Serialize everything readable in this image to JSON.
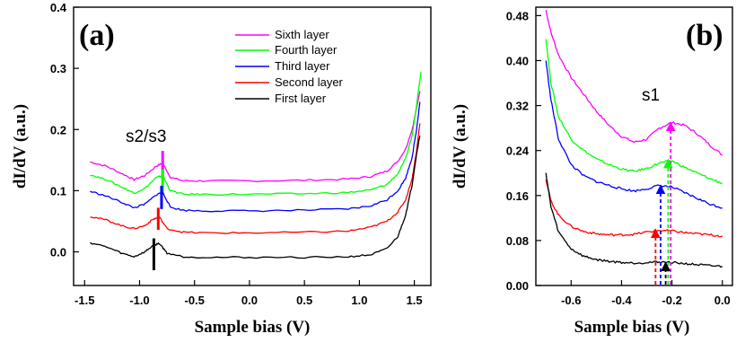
{
  "chart_data": [
    {
      "type": "line",
      "panel_label": "(a)",
      "xlabel": "Sample bias (V)",
      "ylabel": "dI/dV (a.u.)",
      "xlim": [
        -1.6,
        1.65
      ],
      "ylim": [
        -0.055,
        0.4
      ],
      "x_ticks": [
        -1.5,
        -1.0,
        -0.5,
        0.0,
        0.5,
        1.0,
        1.5
      ],
      "x_tick_labels": [
        "-1.5",
        "-1.0",
        "-0.5",
        "0.0",
        "0.5",
        "1.0",
        "1.5"
      ],
      "y_ticks": [
        0.0,
        0.1,
        0.2,
        0.3,
        0.4
      ],
      "y_tick_labels": [
        "0.0",
        "0.1",
        "0.2",
        "0.3",
        "0.4"
      ],
      "legend": [
        "Sixth layer",
        "Fourth layer",
        "Third layer",
        "Second layer",
        "First layer"
      ],
      "annotation": "s2/s3",
      "series": [
        {
          "name": "Sixth layer",
          "color": "#ff00ff",
          "x": [
            -1.45,
            -1.3,
            -1.15,
            -1.05,
            -0.95,
            -0.85,
            -0.79,
            -0.72,
            -0.6,
            -0.4,
            0.0,
            0.5,
            0.9,
            1.1,
            1.25,
            1.35,
            1.42,
            1.48,
            1.52,
            1.55
          ],
          "y": [
            0.147,
            0.14,
            0.127,
            0.118,
            0.125,
            0.14,
            0.145,
            0.122,
            0.116,
            0.116,
            0.116,
            0.117,
            0.119,
            0.123,
            0.132,
            0.148,
            0.168,
            0.2,
            0.235,
            0.263
          ]
        },
        {
          "name": "Fourth layer",
          "color": "#00ff00",
          "x": [
            -1.45,
            -1.3,
            -1.15,
            -1.05,
            -0.95,
            -0.85,
            -0.79,
            -0.72,
            -0.6,
            -0.4,
            0.0,
            0.5,
            0.9,
            1.1,
            1.25,
            1.35,
            1.42,
            1.48,
            1.52,
            1.56
          ],
          "y": [
            0.126,
            0.118,
            0.105,
            0.096,
            0.104,
            0.121,
            0.125,
            0.1,
            0.094,
            0.094,
            0.094,
            0.095,
            0.097,
            0.101,
            0.11,
            0.128,
            0.152,
            0.19,
            0.24,
            0.294
          ]
        },
        {
          "name": "Third layer",
          "color": "#0000ff",
          "x": [
            -1.45,
            -1.3,
            -1.15,
            -1.05,
            -0.95,
            -0.85,
            -0.79,
            -0.72,
            -0.6,
            -0.4,
            0.0,
            0.5,
            0.9,
            1.1,
            1.25,
            1.35,
            1.42,
            1.48,
            1.52,
            1.55
          ],
          "y": [
            0.099,
            0.091,
            0.08,
            0.072,
            0.078,
            0.093,
            0.098,
            0.073,
            0.068,
            0.067,
            0.067,
            0.068,
            0.07,
            0.075,
            0.085,
            0.1,
            0.12,
            0.155,
            0.2,
            0.245
          ]
        },
        {
          "name": "Second layer",
          "color": "#ff0000",
          "x": [
            -1.45,
            -1.3,
            -1.15,
            -1.05,
            -0.95,
            -0.88,
            -0.82,
            -0.75,
            -0.6,
            -0.4,
            0.0,
            0.5,
            0.9,
            1.1,
            1.25,
            1.35,
            1.42,
            1.48,
            1.52,
            1.55
          ],
          "y": [
            0.058,
            0.052,
            0.042,
            0.038,
            0.043,
            0.053,
            0.057,
            0.038,
            0.032,
            0.031,
            0.031,
            0.032,
            0.034,
            0.04,
            0.05,
            0.065,
            0.085,
            0.12,
            0.165,
            0.21
          ]
        },
        {
          "name": "First layer",
          "color": "#000000",
          "x": [
            -1.45,
            -1.3,
            -1.15,
            -1.05,
            -0.95,
            -0.88,
            -0.82,
            -0.75,
            -0.6,
            -0.4,
            0.0,
            0.5,
            0.9,
            1.1,
            1.25,
            1.35,
            1.42,
            1.48,
            1.52,
            1.55
          ],
          "y": [
            0.015,
            0.008,
            -0.003,
            -0.008,
            0.0,
            0.01,
            0.014,
            -0.002,
            -0.008,
            -0.009,
            -0.009,
            -0.009,
            -0.008,
            -0.005,
            0.005,
            0.025,
            0.06,
            0.11,
            0.16,
            0.19
          ]
        }
      ],
      "markers": [
        {
          "name": "Sixth layer",
          "color": "#ff00ff",
          "x": -0.79,
          "y0": 0.118,
          "y1": 0.165
        },
        {
          "name": "Fourth layer",
          "color": "#00ff00",
          "x": -0.79,
          "y0": 0.098,
          "y1": 0.135
        },
        {
          "name": "Third layer",
          "color": "#0000ff",
          "x": -0.8,
          "y0": 0.07,
          "y1": 0.108
        },
        {
          "name": "Second layer",
          "color": "#ff0000",
          "x": -0.83,
          "y0": 0.036,
          "y1": 0.072
        },
        {
          "name": "First layer",
          "color": "#000000",
          "x": -0.87,
          "y0": -0.03,
          "y1": 0.022
        }
      ]
    },
    {
      "type": "line",
      "panel_label": "(b)",
      "xlabel": "Sample bias (V)",
      "ylabel": "dI/dV (a.u.)",
      "xlim": [
        -0.74,
        0.04
      ],
      "ylim": [
        0.0,
        0.495
      ],
      "x_ticks": [
        -0.6,
        -0.4,
        -0.2,
        0.0
      ],
      "x_tick_labels": [
        "-0.6",
        "-0.4",
        "-0.2",
        "0.0"
      ],
      "y_ticks": [
        0.0,
        0.08,
        0.16,
        0.24,
        0.32,
        0.4,
        0.48
      ],
      "y_tick_labels": [
        "0.00",
        "0.08",
        "0.16",
        "0.24",
        "0.32",
        "0.40",
        "0.48"
      ],
      "annotation": "s1",
      "series": [
        {
          "name": "Sixth layer",
          "color": "#ff00ff",
          "x": [
            -0.7,
            -0.68,
            -0.65,
            -0.6,
            -0.55,
            -0.5,
            -0.45,
            -0.4,
            -0.35,
            -0.3,
            -0.25,
            -0.2,
            -0.15,
            -0.1,
            -0.05,
            0.0
          ],
          "y": [
            0.49,
            0.45,
            0.41,
            0.37,
            0.34,
            0.31,
            0.285,
            0.265,
            0.255,
            0.26,
            0.28,
            0.29,
            0.285,
            0.27,
            0.25,
            0.232
          ]
        },
        {
          "name": "Fourth layer",
          "color": "#00ff00",
          "x": [
            -0.7,
            -0.68,
            -0.65,
            -0.6,
            -0.55,
            -0.5,
            -0.45,
            -0.4,
            -0.35,
            -0.3,
            -0.25,
            -0.2,
            -0.15,
            -0.1,
            -0.05,
            0.0
          ],
          "y": [
            0.44,
            0.36,
            0.3,
            0.26,
            0.24,
            0.225,
            0.215,
            0.207,
            0.203,
            0.208,
            0.218,
            0.222,
            0.21,
            0.2,
            0.19,
            0.182
          ]
        },
        {
          "name": "Third layer",
          "color": "#0000ff",
          "x": [
            -0.7,
            -0.68,
            -0.65,
            -0.6,
            -0.55,
            -0.5,
            -0.45,
            -0.4,
            -0.35,
            -0.3,
            -0.25,
            -0.2,
            -0.15,
            -0.1,
            -0.05,
            0.0
          ],
          "y": [
            0.4,
            0.33,
            0.26,
            0.215,
            0.195,
            0.185,
            0.178,
            0.172,
            0.168,
            0.172,
            0.178,
            0.175,
            0.165,
            0.155,
            0.145,
            0.138
          ]
        },
        {
          "name": "Second layer",
          "color": "#ff0000",
          "x": [
            -0.7,
            -0.68,
            -0.65,
            -0.6,
            -0.55,
            -0.5,
            -0.45,
            -0.4,
            -0.35,
            -0.3,
            -0.25,
            -0.2,
            -0.15,
            -0.1,
            -0.05,
            0.0
          ],
          "y": [
            0.19,
            0.15,
            0.125,
            0.105,
            0.096,
            0.092,
            0.09,
            0.09,
            0.091,
            0.095,
            0.098,
            0.097,
            0.094,
            0.092,
            0.09,
            0.088
          ]
        },
        {
          "name": "First layer",
          "color": "#000000",
          "x": [
            -0.7,
            -0.68,
            -0.65,
            -0.6,
            -0.55,
            -0.5,
            -0.45,
            -0.4,
            -0.35,
            -0.3,
            -0.25,
            -0.2,
            -0.15,
            -0.1,
            -0.05,
            0.0
          ],
          "y": [
            0.2,
            0.14,
            0.095,
            0.065,
            0.052,
            0.046,
            0.043,
            0.041,
            0.04,
            0.041,
            0.042,
            0.041,
            0.039,
            0.037,
            0.035,
            0.034
          ]
        }
      ],
      "arrows": [
        {
          "name": "Sixth layer",
          "color": "#ff00ff",
          "x": -0.205,
          "y_top": 0.29
        },
        {
          "name": "Fourth layer",
          "color": "#00ff00",
          "x": -0.215,
          "y_top": 0.224
        },
        {
          "name": "Third layer",
          "color": "#0000ff",
          "x": -0.245,
          "y_top": 0.178
        },
        {
          "name": "Second layer",
          "color": "#ff0000",
          "x": -0.265,
          "y_top": 0.1
        },
        {
          "name": "First layer",
          "color": "#000000",
          "x": -0.225,
          "y_top": 0.041
        }
      ]
    }
  ]
}
